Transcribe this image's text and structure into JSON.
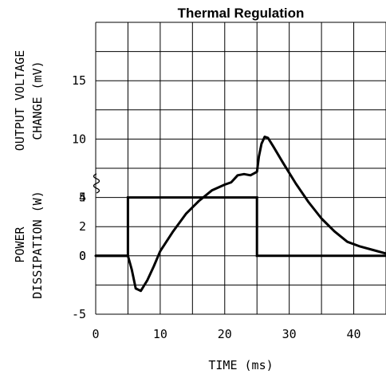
{
  "chart_data": {
    "type": "line",
    "title": "Thermal Regulation",
    "xlabel": "TIME (ms)",
    "x_ticks": [
      0,
      10,
      20,
      30,
      40
    ],
    "xlim": [
      0,
      45
    ],
    "top_panel": {
      "ylabel_lines": [
        "OUTPUT VOLTAGE",
        "CHANGE (mV)"
      ],
      "y_ticks": [
        "15",
        "10",
        "5",
        "0",
        "-5"
      ],
      "ylim": [
        -7.5,
        20
      ],
      "series": [
        {
          "x": [
            0,
            5,
            5.6,
            6.2,
            7,
            8,
            9,
            10,
            12,
            14,
            16,
            18,
            20,
            21,
            22,
            23,
            24,
            25,
            25.3,
            25.7,
            26.2,
            26.7,
            27.5,
            29,
            31,
            33,
            35,
            37,
            39,
            41,
            43,
            45
          ],
          "y": [
            0,
            0,
            -1.2,
            -2.8,
            -3,
            -2.1,
            -0.9,
            0.4,
            2.1,
            3.6,
            4.7,
            5.6,
            6.1,
            6.3,
            6.9,
            7.0,
            6.9,
            7.2,
            8.5,
            9.6,
            10.2,
            10.1,
            9.4,
            8.0,
            6.2,
            4.6,
            3.2,
            2.1,
            1.2,
            0.8,
            0.5,
            0.2
          ]
        }
      ]
    },
    "bottom_panel": {
      "ylabel_lines": [
        "POWER",
        "DISSIPATION (W)"
      ],
      "y_ticks": [
        "4",
        "2",
        "0"
      ],
      "ylim": [
        -6,
        4
      ],
      "series": [
        {
          "x": [
            0,
            5,
            5,
            25,
            25,
            45
          ],
          "y": [
            0,
            0,
            4,
            4,
            0,
            0
          ]
        }
      ]
    },
    "grid": true
  }
}
